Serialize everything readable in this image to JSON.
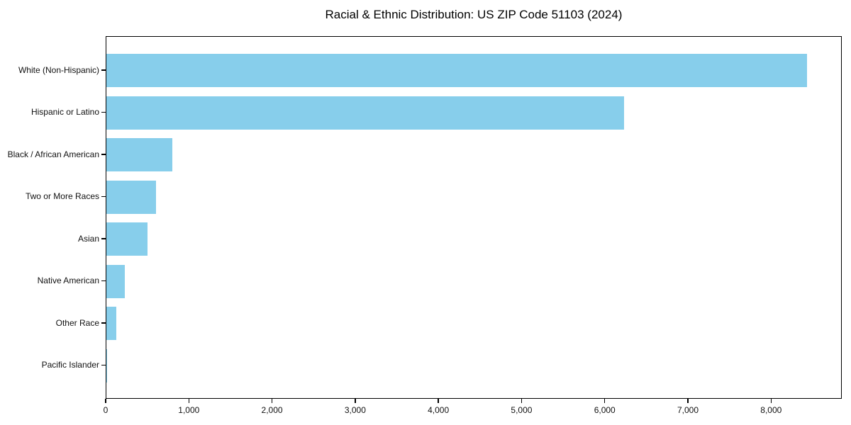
{
  "chart_data": {
    "type": "bar",
    "orientation": "horizontal",
    "title": "Racial & Ethnic Distribution: US ZIP Code 51103 (2024)",
    "categories": [
      "White (Non-Hispanic)",
      "Hispanic or Latino",
      "Black / African American",
      "Two or More Races",
      "Asian",
      "Native American",
      "Other Race",
      "Pacific Islander"
    ],
    "values": [
      8425,
      6225,
      795,
      600,
      495,
      220,
      120,
      10
    ],
    "xlabel": "",
    "ylabel": "",
    "xlim": [
      0,
      8850
    ],
    "x_ticks": [
      0,
      1000,
      2000,
      3000,
      4000,
      5000,
      6000,
      7000,
      8000
    ],
    "x_tick_labels": [
      "0",
      "1,000",
      "2,000",
      "3,000",
      "4,000",
      "5,000",
      "6,000",
      "7,000",
      "8,000"
    ],
    "bar_color": "#87CEEB",
    "text_color": "#111111",
    "grid": false,
    "legend": "none"
  }
}
